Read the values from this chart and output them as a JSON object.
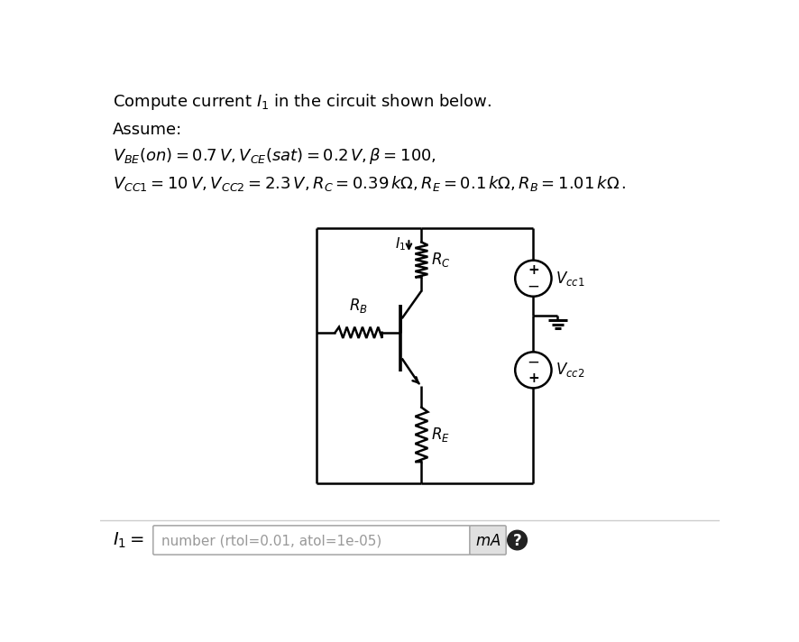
{
  "title_line1": "Compute current $I_1$ in the circuit shown below.",
  "assume_label": "Assume:",
  "eq_line1": "$V_{BE}(on) = 0.7\\,V, V_{CE}(sat) = 0.2\\,V, \\beta = 100,$",
  "eq_line2": "$V_{CC1} = 10\\,V, V_{CC2} = 2.3\\,V, R_C = 0.39\\,k\\Omega, R_E = 0.1\\,k\\Omega, R_B = 1.01\\,k\\Omega\\,.$",
  "answer_label": "$I_1 =$",
  "answer_box_text": "number (rtol=0.01, atol=1e-05)",
  "unit_text": "$mA$",
  "bg_color": "#ffffff",
  "text_color": "#000000",
  "circuit_line_color": "#000000",
  "vcc1_plus_top": true,
  "vcc2_plus_bottom": true
}
